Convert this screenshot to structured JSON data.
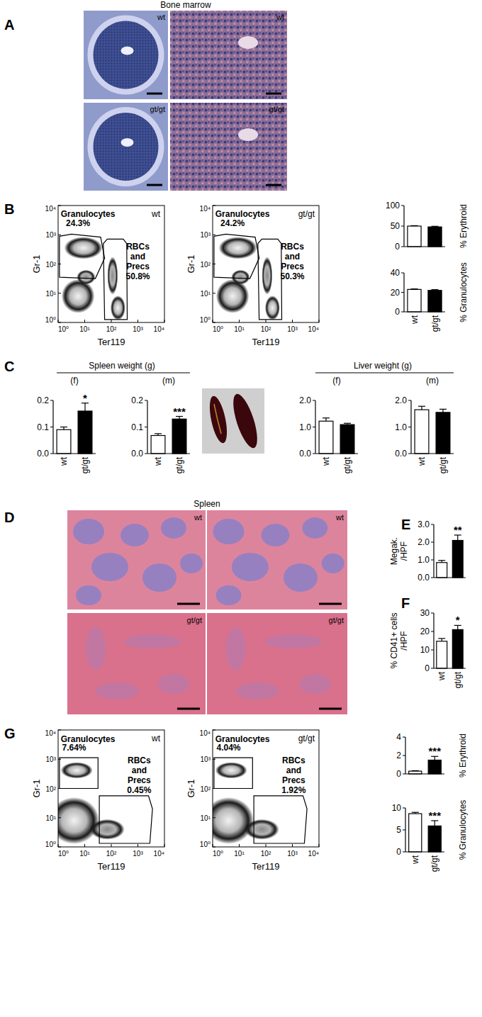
{
  "figure": {
    "panel_labels": [
      "A",
      "B",
      "C",
      "D",
      "E",
      "F",
      "G"
    ],
    "bone_marrow": {
      "title": "Bone marrow",
      "labels": [
        "wt",
        "wt",
        "gt/gt",
        "gt/gt"
      ]
    },
    "spleen_histology": {
      "title": "Spleen",
      "labels": [
        "wt",
        "wt",
        "gt/gt",
        "gt/gt"
      ]
    },
    "headings": [
      "Spleen weight (g)",
      "Liver weight (g)"
    ]
  },
  "chart_data": [
    {
      "type": "density",
      "label": "wt",
      "xlabel": "Ter119",
      "ylabel": "Gr-1",
      "log": true,
      "xlim": [
        1,
        10000
      ],
      "ylim": [
        1,
        10000
      ],
      "xticks": [
        {
          "value": 1,
          "label": "10⁰"
        },
        {
          "value": 10,
          "label": "10¹"
        },
        {
          "value": 100,
          "label": "10²"
        },
        {
          "value": 1000,
          "label": "10³"
        },
        {
          "value": 10000,
          "label": "10⁴"
        }
      ],
      "yticks": [
        {
          "value": 1,
          "label": "10⁰"
        },
        {
          "value": 10,
          "label": "10¹"
        },
        {
          "value": 100,
          "label": "10²"
        },
        {
          "value": 1000,
          "label": "10³"
        },
        {
          "value": 10000,
          "label": "10⁴"
        }
      ],
      "gates": [
        {
          "name": "Granulocytes",
          "value": 24.3,
          "value_label": "24.3%"
        },
        {
          "name": "RBCs and Precs",
          "value": 50.8,
          "value_label": "50.8%"
        }
      ]
    },
    {
      "type": "density",
      "label": "gt/gt",
      "xlabel": "Ter119",
      "ylabel": "Gr-1",
      "log": true,
      "xlim": [
        1,
        10000
      ],
      "ylim": [
        1,
        10000
      ],
      "xticks": [
        {
          "value": 1,
          "label": "10⁰"
        },
        {
          "value": 10,
          "label": "10¹"
        },
        {
          "value": 100,
          "label": "10²"
        },
        {
          "value": 1000,
          "label": "10³"
        },
        {
          "value": 10000,
          "label": "10⁴"
        }
      ],
      "yticks": [
        {
          "value": 1,
          "label": "10⁰"
        },
        {
          "value": 10,
          "label": "10¹"
        },
        {
          "value": 100,
          "label": "10²"
        },
        {
          "value": 1000,
          "label": "10³"
        },
        {
          "value": 10000,
          "label": "10⁴"
        }
      ],
      "gates": [
        {
          "name": "Granulocytes",
          "value": 24.2,
          "value_label": "24.2%"
        },
        {
          "name": "RBCs and Precs",
          "value": 50.3,
          "value_label": "50.3%"
        }
      ]
    },
    {
      "type": "bar",
      "ylabel": "% Erythroid",
      "categories": [
        null,
        null
      ],
      "values": [
        50,
        48
      ],
      "errors": [
        1,
        1.5
      ],
      "colors": [
        "#ffffff",
        "#000000"
      ],
      "ylim": [
        0,
        100
      ],
      "yticks": [
        0,
        50,
        100
      ]
    },
    {
      "type": "bar",
      "ylabel": "% Granulocytes",
      "categories": [
        "wt",
        "gt/gt"
      ],
      "values": [
        23,
        22
      ],
      "errors": [
        0.5,
        0.8
      ],
      "colors": [
        "#ffffff",
        "#000000"
      ],
      "ylim": [
        0,
        40
      ],
      "yticks": [
        0,
        20,
        40
      ]
    },
    {
      "type": "bar",
      "subtitle": "(f)",
      "categories": [
        "wt",
        "gt/gt"
      ],
      "values": [
        0.09,
        0.16
      ],
      "errors": [
        0.01,
        0.03
      ],
      "significance": [
        null,
        "*"
      ],
      "colors": [
        "#ffffff",
        "#000000"
      ],
      "ylim": [
        0,
        0.2
      ],
      "yticks": [
        {
          "value": 0,
          "label": "0.0"
        },
        0.1,
        0.2
      ]
    },
    {
      "type": "bar",
      "subtitle": "(m)",
      "categories": [
        "wt",
        "gt/gt"
      ],
      "values": [
        0.068,
        0.13
      ],
      "errors": [
        0.007,
        0.01
      ],
      "significance": [
        null,
        "***"
      ],
      "colors": [
        "#ffffff",
        "#000000"
      ],
      "ylim": [
        0,
        0.2
      ],
      "yticks": [
        {
          "value": 0,
          "label": "0.0"
        },
        0.1,
        0.2
      ]
    },
    {
      "type": "bar",
      "subtitle": "(f)",
      "categories": [
        "wt",
        "gt/gt"
      ],
      "values": [
        1.22,
        1.09
      ],
      "errors": [
        0.12,
        0.05
      ],
      "colors": [
        "#ffffff",
        "#000000"
      ],
      "ylim": [
        0,
        2
      ],
      "yticks": [
        {
          "value": 0,
          "label": "0.0"
        },
        {
          "value": 1,
          "label": "1.0"
        },
        {
          "value": 2,
          "label": "2.0"
        }
      ]
    },
    {
      "type": "bar",
      "subtitle": "(m)",
      "categories": [
        "wt",
        "gt/gt"
      ],
      "values": [
        1.65,
        1.55
      ],
      "errors": [
        0.13,
        0.12
      ],
      "colors": [
        "#ffffff",
        "#000000"
      ],
      "ylim": [
        0,
        2
      ],
      "yticks": [
        {
          "value": 0,
          "label": "0.0"
        },
        {
          "value": 1,
          "label": "1.0"
        },
        {
          "value": 2,
          "label": "2.0"
        }
      ]
    },
    {
      "type": "bar",
      "ylabel": [
        "Megak.",
        "/HPF"
      ],
      "categories": [
        null,
        null
      ],
      "values": [
        0.85,
        2.1
      ],
      "errors": [
        0.12,
        0.3
      ],
      "significance": [
        null,
        "**"
      ],
      "colors": [
        "#ffffff",
        "#000000"
      ],
      "ylim": [
        0,
        3
      ],
      "yticks": [
        {
          "value": 0,
          "label": "0.0"
        },
        {
          "value": 1,
          "label": "1.0"
        },
        {
          "value": 2,
          "label": "2.0"
        },
        {
          "value": 3,
          "label": "3.0"
        }
      ]
    },
    {
      "type": "bar",
      "ylabel": [
        "% CD41+ cells",
        "/HPF"
      ],
      "categories": [
        "wt",
        "gt/gt"
      ],
      "values": [
        14.7,
        21
      ],
      "errors": [
        1.5,
        2.3
      ],
      "significance": [
        null,
        "*"
      ],
      "colors": [
        "#ffffff",
        "#000000"
      ],
      "ylim": [
        0,
        30
      ],
      "yticks": [
        0,
        10,
        20,
        30
      ]
    },
    {
      "type": "density",
      "label": "wt",
      "xlabel": "Ter119",
      "ylabel": "Gr-1",
      "log": true,
      "xlim": [
        1,
        10000
      ],
      "ylim": [
        1,
        10000
      ],
      "xticks": [
        {
          "value": 1,
          "label": "10⁰"
        },
        {
          "value": 10,
          "label": "10¹"
        },
        {
          "value": 100,
          "label": "10²"
        },
        {
          "value": 1000,
          "label": "10³"
        },
        {
          "value": 10000,
          "label": "10⁴"
        }
      ],
      "yticks": [
        {
          "value": 1,
          "label": "10⁰"
        },
        {
          "value": 10,
          "label": "10¹"
        },
        {
          "value": 100,
          "label": "10²"
        },
        {
          "value": 1000,
          "label": "10³"
        },
        {
          "value": 10000,
          "label": "10⁴"
        }
      ],
      "gates": [
        {
          "name": "Granulocytes",
          "value": 7.64,
          "value_label": "7.64%"
        },
        {
          "name": "RBCs and Precs",
          "value": 0.45,
          "value_label": "0.45%"
        }
      ]
    },
    {
      "type": "density",
      "label": "gt/gt",
      "xlabel": "Ter119",
      "ylabel": "Gr-1",
      "log": true,
      "xlim": [
        1,
        10000
      ],
      "ylim": [
        1,
        10000
      ],
      "xticks": [
        {
          "value": 1,
          "label": "10⁰"
        },
        {
          "value": 10,
          "label": "10¹"
        },
        {
          "value": 100,
          "label": "10²"
        },
        {
          "value": 1000,
          "label": "10³"
        },
        {
          "value": 10000,
          "label": "10⁴"
        }
      ],
      "yticks": [
        {
          "value": 1,
          "label": "10⁰"
        },
        {
          "value": 10,
          "label": "10¹"
        },
        {
          "value": 100,
          "label": "10²"
        },
        {
          "value": 1000,
          "label": "10³"
        },
        {
          "value": 10000,
          "label": "10⁴"
        }
      ],
      "gates": [
        {
          "name": "Granulocytes",
          "value": 4.04,
          "value_label": "4.04%"
        },
        {
          "name": "RBCs and Precs",
          "value": 1.92,
          "value_label": "1.92%"
        }
      ]
    },
    {
      "type": "bar",
      "ylabel": "% Erythroid",
      "categories": [
        null,
        null
      ],
      "values": [
        0.3,
        1.5
      ],
      "errors": [
        0.05,
        0.4
      ],
      "significance": [
        null,
        "***"
      ],
      "colors": [
        "#ffffff",
        "#000000"
      ],
      "ylim": [
        0,
        4
      ],
      "yticks": [
        0,
        2,
        4
      ]
    },
    {
      "type": "bar",
      "ylabel": "% Granulocytes",
      "categories": [
        "wt",
        "gt/gt"
      ],
      "values": [
        8.7,
        5.9
      ],
      "errors": [
        0.3,
        1.2
      ],
      "significance": [
        null,
        "***"
      ],
      "colors": [
        "#ffffff",
        "#000000"
      ],
      "ylim": [
        0,
        10
      ],
      "yticks": [
        0,
        5,
        10
      ]
    }
  ]
}
